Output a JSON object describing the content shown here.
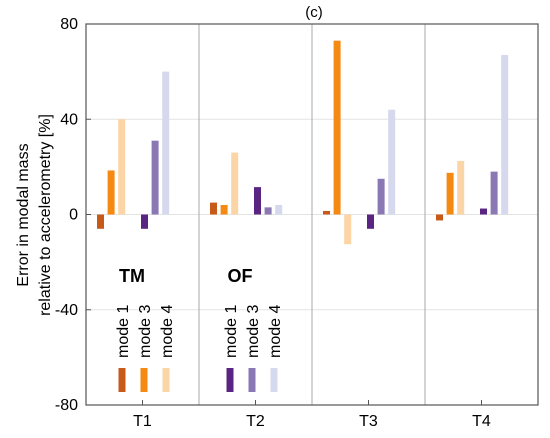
{
  "chart_data": {
    "type": "bar",
    "title": "(c)",
    "ylabel_lines": [
      "Error in modal mass",
      "relative to accelerometry [%]"
    ],
    "xlabel": "",
    "ylim": [
      -80,
      80
    ],
    "yticks": [
      -80,
      -40,
      0,
      40,
      80
    ],
    "grid": true,
    "categories": [
      "T1",
      "T2",
      "T3",
      "T4"
    ],
    "series": [
      {
        "name": "TM mode 1",
        "color": "#c85a19",
        "values": [
          -6,
          5,
          1.5,
          -2.5
        ]
      },
      {
        "name": "TM mode 3",
        "color": "#f58a13",
        "values": [
          18.5,
          4,
          73,
          17.5
        ]
      },
      {
        "name": "TM mode 4",
        "color": "#fbd5a5",
        "values": [
          40,
          26,
          -12.5,
          22.5
        ]
      },
      {
        "name": "OF mode 1",
        "color": "#5a2582",
        "values": [
          -6,
          11.5,
          -6,
          2.5
        ]
      },
      {
        "name": "OF mode 3",
        "color": "#8978b3",
        "values": [
          31,
          3,
          15,
          18
        ]
      },
      {
        "name": "OF mode 4",
        "color": "#d6d8ee",
        "values": [
          60,
          4,
          44,
          67
        ]
      }
    ],
    "legend": {
      "placement": "lower-left",
      "groups": [
        {
          "title": "TM",
          "labels": [
            "mode 1",
            "mode 3",
            "mode 4"
          ],
          "colors": [
            "#c85a19",
            "#f58a13",
            "#fbd5a5"
          ]
        },
        {
          "title": "OF",
          "labels": [
            "mode 1",
            "mode 3",
            "mode 4"
          ],
          "colors": [
            "#5a2582",
            "#8978b3",
            "#d6d8ee"
          ]
        }
      ]
    }
  }
}
